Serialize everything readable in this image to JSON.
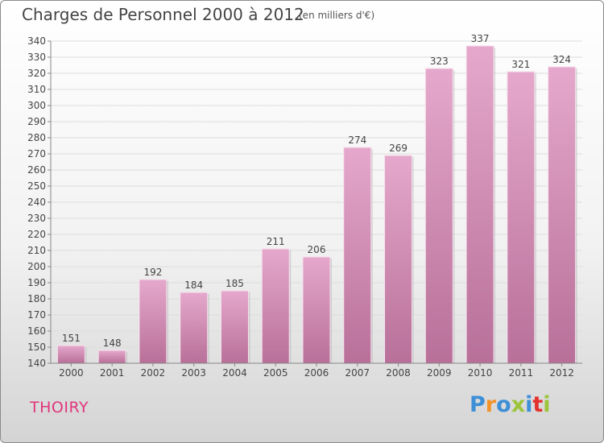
{
  "header": {
    "title": "Charges de Personnel 2000 à 2012",
    "subtitle": "(en milliers d'€)"
  },
  "footer": {
    "city": "THOIRY",
    "logo_text": "Proxiti"
  },
  "colors": {
    "bar_light": "#e5a8cc",
    "bar_dark": "#b87099",
    "city": "#e0367c",
    "logo_letters": [
      "#3d8fd6",
      "#f2932b",
      "#3d8fd6",
      "#9cc43b",
      "#3d8fd6",
      "#e3312d",
      "#9cc43b"
    ]
  },
  "chart_data": {
    "type": "bar",
    "title": "Charges de Personnel 2000 à 2012",
    "subtitle": "(en milliers d'€)",
    "categories": [
      "2000",
      "2001",
      "2002",
      "2003",
      "2004",
      "2005",
      "2006",
      "2007",
      "2008",
      "2009",
      "2010",
      "2011",
      "2012"
    ],
    "values": [
      151,
      148,
      192,
      184,
      185,
      211,
      206,
      274,
      269,
      323,
      337,
      321,
      324
    ],
    "ylim": [
      140,
      340
    ],
    "yticks": [
      140,
      150,
      160,
      170,
      180,
      190,
      200,
      210,
      220,
      230,
      240,
      250,
      260,
      270,
      280,
      290,
      300,
      310,
      320,
      330,
      340
    ],
    "grid": true,
    "data_labels": true
  }
}
